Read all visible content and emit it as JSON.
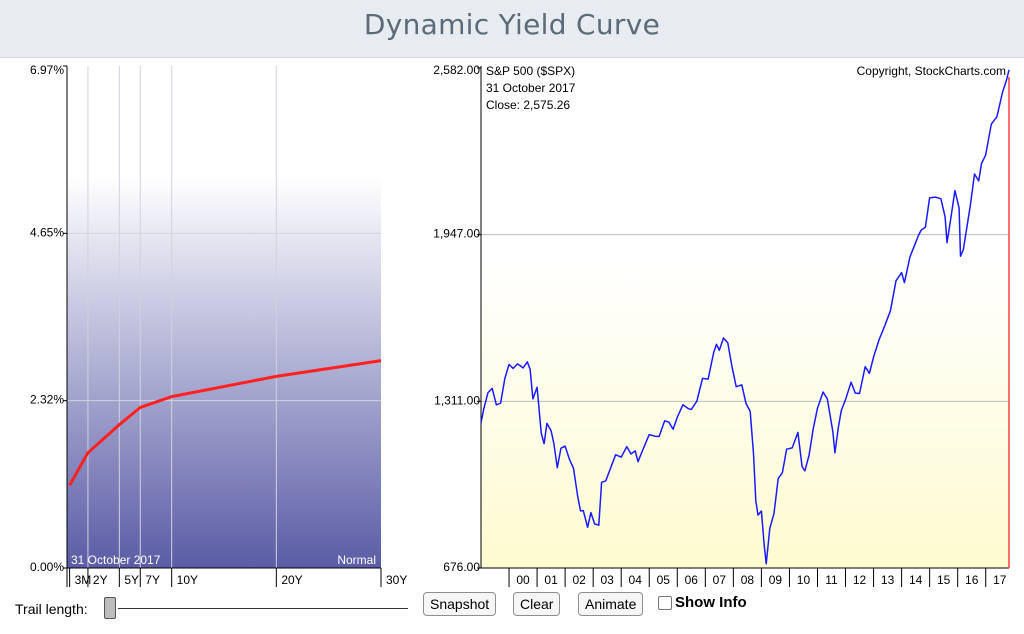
{
  "page": {
    "title": "Dynamic Yield Curve"
  },
  "colors": {
    "yield_line": "#ff2020",
    "spx_line": "#1a1aff",
    "gradient_bottom": "#5a5ca6",
    "yellow_bottom": "#fdfbcf",
    "last_marker": "#ff4040"
  },
  "chart_data": [
    {
      "type": "line",
      "title": "",
      "date_label": "31  October 2017",
      "shape_label": "Normal",
      "categories": [
        "3M",
        "2Y",
        "5Y",
        "7Y",
        "10Y",
        "20Y",
        "30Y"
      ],
      "category_years": [
        0.25,
        2,
        5,
        7,
        10,
        20,
        30
      ],
      "series": [
        {
          "values": [
            1.15,
            1.6,
            1.99,
            2.23,
            2.38,
            2.66,
            2.88
          ]
        }
      ],
      "y_ticks": [
        "6.97%",
        "4.65%",
        "2.32%",
        "0.00%"
      ],
      "ylim": [
        0,
        6.97
      ],
      "grid": true
    },
    {
      "type": "line",
      "series_label": "S&P 500 ($SPX)",
      "date_label": "31  October 2017",
      "close_label": "Close: 2,575.26",
      "copyright": "Copyright, StockCharts.com",
      "y_ticks": [
        "2,582.00",
        "1,947.00",
        "1,311.00",
        "676.00"
      ],
      "ylim": [
        676,
        2582
      ],
      "x_ticks": [
        "00",
        "01",
        "02",
        "03",
        "04",
        "05",
        "06",
        "07",
        "08",
        "09",
        "10",
        "11",
        "12",
        "13",
        "14",
        "15",
        "16",
        "17"
      ],
      "xlim": [
        1999.0,
        2017.83
      ],
      "grid": true,
      "series": [
        {
          "x": [
            1999.0,
            1999.1,
            1999.25,
            1999.4,
            1999.55,
            1999.7,
            1999.85,
            2000.0,
            2000.15,
            2000.3,
            2000.5,
            2000.65,
            2000.75,
            2000.85,
            2001.0,
            2001.15,
            2001.25,
            2001.35,
            2001.5,
            2001.6,
            2001.72,
            2001.85,
            2002.0,
            2002.15,
            2002.3,
            2002.45,
            2002.55,
            2002.65,
            2002.8,
            2002.92,
            2003.05,
            2003.2,
            2003.3,
            2003.45,
            2003.6,
            2003.8,
            2004.0,
            2004.2,
            2004.35,
            2004.5,
            2004.6,
            2004.75,
            2005.0,
            2005.2,
            2005.35,
            2005.55,
            2005.7,
            2005.85,
            2006.0,
            2006.2,
            2006.4,
            2006.5,
            2006.7,
            2006.9,
            2007.1,
            2007.3,
            2007.4,
            2007.5,
            2007.65,
            2007.8,
            2007.95,
            2008.1,
            2008.3,
            2008.45,
            2008.6,
            2008.72,
            2008.8,
            2008.88,
            2009.0,
            2009.1,
            2009.17,
            2009.3,
            2009.45,
            2009.6,
            2009.75,
            2009.9,
            2010.1,
            2010.3,
            2010.45,
            2010.55,
            2010.7,
            2010.85,
            2011.0,
            2011.2,
            2011.35,
            2011.55,
            2011.62,
            2011.75,
            2011.85,
            2012.0,
            2012.2,
            2012.35,
            2012.5,
            2012.7,
            2012.85,
            2013.0,
            2013.2,
            2013.4,
            2013.6,
            2013.8,
            2014.0,
            2014.1,
            2014.3,
            2014.5,
            2014.6,
            2014.7,
            2014.85,
            2015.0,
            2015.2,
            2015.4,
            2015.55,
            2015.62,
            2015.75,
            2015.9,
            2016.05,
            2016.1,
            2016.2,
            2016.45,
            2016.6,
            2016.75,
            2016.85,
            2017.0,
            2017.2,
            2017.4,
            2017.6,
            2017.75,
            2017.83
          ],
          "values": [
            1229,
            1280,
            1320,
            1370,
            1300,
            1330,
            1390,
            1450,
            1410,
            1460,
            1440,
            1490,
            1430,
            1320,
            1340,
            1190,
            1150,
            1250,
            1200,
            1150,
            1040,
            1130,
            1140,
            1110,
            1060,
            950,
            880,
            890,
            830,
            900,
            850,
            840,
            990,
            1000,
            1050,
            1120,
            1110,
            1140,
            1100,
            1110,
            1080,
            1130,
            1200,
            1180,
            1170,
            1220,
            1230,
            1210,
            1270,
            1300,
            1280,
            1260,
            1310,
            1400,
            1420,
            1500,
            1530,
            1480,
            1550,
            1530,
            1470,
            1370,
            1380,
            1280,
            1270,
            1100,
            950,
            880,
            900,
            750,
            690,
            820,
            900,
            1020,
            1050,
            1110,
            1130,
            1180,
            1080,
            1050,
            1120,
            1190,
            1280,
            1330,
            1340,
            1200,
            1130,
            1200,
            1270,
            1300,
            1400,
            1350,
            1360,
            1430,
            1410,
            1460,
            1560,
            1610,
            1680,
            1760,
            1790,
            1740,
            1870,
            1930,
            1970,
            1960,
            1960,
            2060,
            2090,
            2100,
            2040,
            1920,
            1990,
            2090,
            2040,
            1880,
            1910,
            2070,
            2160,
            2130,
            2200,
            2270,
            2390,
            2420,
            2470,
            2519,
            2575
          ]
        }
      ]
    }
  ],
  "controls": {
    "trail_label": "Trail length:",
    "snapshot_label": "Snapshot",
    "clear_label": "Clear",
    "animate_label": "Animate",
    "show_info_label": "Show Info"
  }
}
